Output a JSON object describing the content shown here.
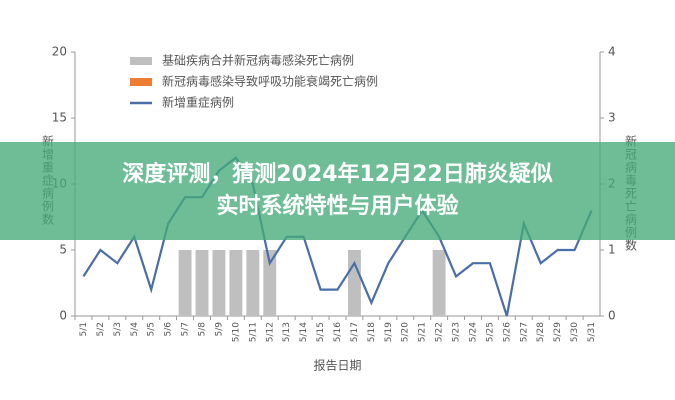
{
  "chart_data": {
    "type": "bar-line",
    "x_label": "报告日期",
    "y_label": "新增重症病例数",
    "y2_label": "新冠病毒死亡病例数",
    "categories": [
      "5/1",
      "5/2",
      "5/3",
      "5/4",
      "5/5",
      "5/6",
      "5/7",
      "5/8",
      "5/9",
      "5/10",
      "5/11",
      "5/12",
      "5/13",
      "5/14",
      "5/15",
      "5/16",
      "5/17",
      "5/18",
      "5/19",
      "5/20",
      "5/21",
      "5/22",
      "5/23",
      "5/24",
      "5/25",
      "5/26",
      "5/27",
      "5/28",
      "5/29",
      "5/30",
      "5/31"
    ],
    "series": [
      {
        "name": "基础疾病合并新冠病毒感染死亡病例",
        "type": "bar",
        "axis": "y2",
        "color": "#bfbfbf",
        "values": [
          0,
          0,
          0,
          0,
          0,
          0,
          1,
          1,
          1,
          1,
          1,
          1,
          0,
          0,
          0,
          0,
          1,
          0,
          0,
          0,
          0,
          1,
          0,
          0,
          0,
          0,
          0,
          0,
          0,
          0,
          0
        ]
      },
      {
        "name": "新冠病毒感染导致呼吸功能衰竭死亡病例",
        "type": "bar",
        "axis": "y2",
        "color": "#ed7d31",
        "values": [
          0,
          0,
          0,
          0,
          0,
          0,
          0,
          0,
          0,
          0,
          0,
          0,
          0,
          0,
          0,
          0,
          0,
          0,
          0,
          0,
          0,
          0,
          0,
          0,
          0,
          0,
          0,
          0,
          0,
          0,
          0
        ]
      },
      {
        "name": "新增重症病例",
        "type": "line",
        "color": "#4a6ea8",
        "values": [
          3,
          5,
          4,
          6,
          2,
          7,
          9,
          9,
          11,
          12,
          10,
          4,
          6,
          6,
          2,
          2,
          4,
          1,
          4,
          6,
          8,
          6,
          3,
          4,
          4,
          0,
          7,
          4,
          5,
          5,
          8
        ]
      }
    ],
    "ylim": [
      0,
      20
    ],
    "yticks": [
      0,
      5,
      10,
      15,
      20
    ],
    "y2lim": [
      0,
      4
    ],
    "y2ticks": [
      0,
      1,
      2,
      3,
      4
    ]
  },
  "banner": {
    "lines": [
      "深度评测，猜测2024年12月22日肺炎疑似",
      "实时系统特性与用户体验"
    ]
  }
}
